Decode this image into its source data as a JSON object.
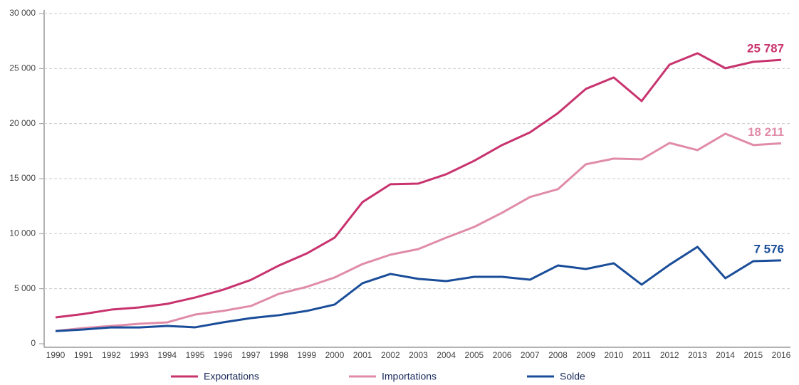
{
  "chart_data": {
    "type": "line",
    "categories": [
      "1990",
      "1991",
      "1992",
      "1993",
      "1994",
      "1995",
      "1996",
      "1997",
      "1998",
      "1999",
      "2000",
      "2001",
      "2002",
      "2003",
      "2004",
      "2005",
      "2006",
      "2007",
      "2008",
      "2009",
      "2010",
      "2011",
      "2012",
      "2013",
      "2014",
      "2015",
      "2016"
    ],
    "series": [
      {
        "name": "Exportations",
        "color": "#c8336e",
        "values": [
          2390,
          2700,
          3100,
          3300,
          3620,
          4200,
          4900,
          5800,
          7100,
          8200,
          9640,
          12870,
          14490,
          14550,
          15400,
          16620,
          18050,
          19200,
          20950,
          23150,
          24190,
          22050,
          25360,
          26390,
          25030,
          25610,
          25787
        ],
        "value_labels": [
          null,
          null,
          null,
          null,
          null,
          null,
          null,
          null,
          null,
          null,
          null,
          null,
          null,
          null,
          null,
          null,
          null,
          null,
          null,
          null,
          null,
          null,
          null,
          null,
          null,
          null,
          "25 787"
        ]
      },
      {
        "name": "Importations",
        "color": "#e08ca8",
        "values": [
          1160,
          1420,
          1620,
          1810,
          1940,
          2650,
          2980,
          3430,
          4530,
          5170,
          6020,
          7240,
          8090,
          8600,
          9640,
          10610,
          11900,
          13330,
          14040,
          16300,
          16820,
          16750,
          18240,
          17590,
          19080,
          18050,
          18211
        ],
        "value_labels": [
          null,
          null,
          null,
          null,
          null,
          null,
          null,
          null,
          null,
          null,
          null,
          null,
          null,
          null,
          null,
          null,
          null,
          null,
          null,
          null,
          null,
          null,
          null,
          null,
          null,
          null,
          "18 211"
        ]
      },
      {
        "name": "Solde",
        "color": "#1a4d99",
        "values": [
          1150,
          1290,
          1490,
          1480,
          1620,
          1490,
          1940,
          2330,
          2590,
          2980,
          3560,
          5500,
          6340,
          5890,
          5690,
          6080,
          6080,
          5820,
          7110,
          6790,
          7310,
          5370,
          7180,
          8800,
          5950,
          7500,
          7576
        ],
        "value_labels": [
          null,
          null,
          null,
          null,
          null,
          null,
          null,
          null,
          null,
          null,
          null,
          null,
          null,
          null,
          null,
          null,
          null,
          null,
          null,
          null,
          null,
          null,
          null,
          null,
          null,
          null,
          "7 576"
        ]
      }
    ],
    "ylim": [
      0,
      30000
    ],
    "yticks": [
      0,
      {
        "value": 5000,
        "label": "5 000"
      },
      {
        "value": 10000,
        "label": "10 000"
      },
      {
        "value": 15000,
        "label": "15 000"
      },
      {
        "value": 20000,
        "label": "20 000"
      },
      {
        "value": 25000,
        "label": "25 000"
      },
      {
        "value": 30000,
        "label": "30 000"
      }
    ],
    "grid": true,
    "legend": "bottom"
  }
}
